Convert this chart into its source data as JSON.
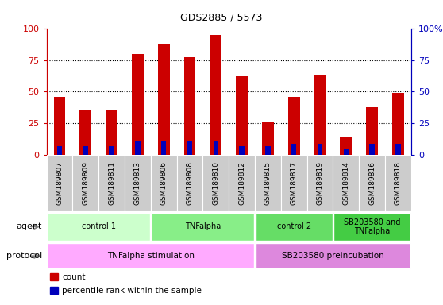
{
  "title": "GDS2885 / 5573",
  "samples": [
    "GSM189807",
    "GSM189809",
    "GSM189811",
    "GSM189813",
    "GSM189806",
    "GSM189808",
    "GSM189810",
    "GSM189812",
    "GSM189815",
    "GSM189817",
    "GSM189819",
    "GSM189814",
    "GSM189816",
    "GSM189818"
  ],
  "count_values": [
    46,
    35,
    35,
    80,
    87,
    77,
    95,
    62,
    26,
    46,
    63,
    14,
    38,
    49
  ],
  "percentile_values": [
    7,
    7,
    7,
    11,
    11,
    11,
    11,
    7,
    7,
    9,
    9,
    5,
    9,
    9
  ],
  "count_color": "#cc0000",
  "percentile_color": "#0000bb",
  "bar_bg_color": "#cccccc",
  "ymax": 100,
  "yticks": [
    0,
    25,
    50,
    75,
    100
  ],
  "right_ytick_labels": [
    "0",
    "25",
    "50",
    "75",
    "100%"
  ],
  "agent_groups": [
    {
      "label": "control 1",
      "start": 0,
      "end": 4,
      "color": "#ccffcc"
    },
    {
      "label": "TNFalpha",
      "start": 4,
      "end": 8,
      "color": "#88ee88"
    },
    {
      "label": "control 2",
      "start": 8,
      "end": 11,
      "color": "#66dd66"
    },
    {
      "label": "SB203580 and\nTNFalpha",
      "start": 11,
      "end": 14,
      "color": "#44cc44"
    }
  ],
  "protocol_groups": [
    {
      "label": "TNFalpha stimulation",
      "start": 0,
      "end": 8,
      "color": "#ffaaff"
    },
    {
      "label": "SB203580 preincubation",
      "start": 8,
      "end": 14,
      "color": "#dd88dd"
    }
  ],
  "legend_items": [
    {
      "label": "count",
      "color": "#cc0000"
    },
    {
      "label": "percentile rank within the sample",
      "color": "#0000bb"
    }
  ],
  "agent_label": "agent",
  "protocol_label": "protocol",
  "bar_width": 0.45,
  "percentile_bar_width": 0.2
}
